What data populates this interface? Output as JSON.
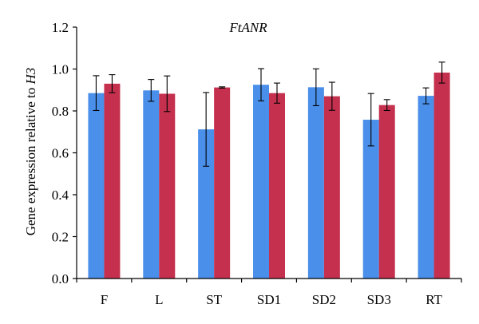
{
  "chart_data": {
    "type": "bar",
    "title": "FtANR",
    "ylabel_prefix": "Gene expression relative to ",
    "ylabel_italic": "H3",
    "xlabel": "",
    "categories": [
      "F",
      "L",
      "ST",
      "SD1",
      "SD2",
      "SD3",
      "RT"
    ],
    "ylim": [
      0,
      1.2
    ],
    "yticks": [
      "0.0",
      "0.2",
      "0.4",
      "0.6",
      "0.8",
      "1.0",
      "1.2"
    ],
    "grid": false,
    "series": [
      {
        "color": "#4a8fea",
        "values": [
          0.885,
          0.898,
          0.712,
          0.925,
          0.913,
          0.758,
          0.872
        ],
        "errors": [
          0.083,
          0.052,
          0.176,
          0.077,
          0.088,
          0.125,
          0.038
        ]
      },
      {
        "color": "#c4304e",
        "values": [
          0.93,
          0.882,
          0.912,
          0.885,
          0.87,
          0.828,
          0.983
        ],
        "errors": [
          0.043,
          0.085,
          0.003,
          0.048,
          0.067,
          0.026,
          0.05
        ]
      }
    ]
  }
}
